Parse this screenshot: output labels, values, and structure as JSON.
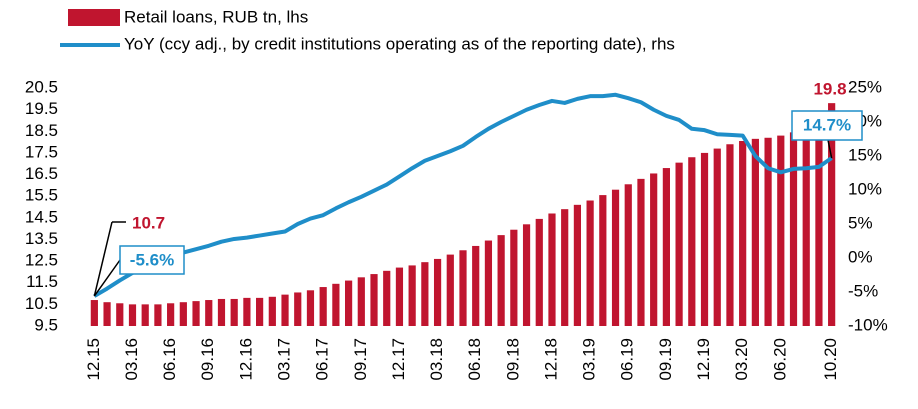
{
  "chart_data": {
    "type": "bar_line",
    "categories": [
      "12.15",
      null,
      null,
      "03.16",
      null,
      null,
      "06.16",
      null,
      null,
      "09.16",
      null,
      null,
      "12.16",
      null,
      null,
      "03.17",
      null,
      null,
      "06.17",
      null,
      null,
      "09.17",
      null,
      null,
      "12.17",
      null,
      null,
      "03.18",
      null,
      null,
      "06.18",
      null,
      null,
      "09.18",
      null,
      null,
      "12.18",
      null,
      null,
      "03.19",
      null,
      null,
      "06.19",
      null,
      null,
      "09.19",
      null,
      null,
      "12.19",
      null,
      null,
      "03.20",
      null,
      null,
      "06.20",
      null,
      null,
      null,
      "10.20"
    ],
    "series": [
      {
        "name": "Retail loans, RUB tn, lhs",
        "color": "#c0152f",
        "type": "bar",
        "values": [
          10.7,
          10.6,
          10.55,
          10.5,
          10.5,
          10.5,
          10.55,
          10.6,
          10.65,
          10.7,
          10.75,
          10.75,
          10.8,
          10.8,
          10.85,
          10.95,
          11.05,
          11.15,
          11.3,
          11.45,
          11.6,
          11.75,
          11.9,
          12.05,
          12.2,
          12.3,
          12.45,
          12.6,
          12.8,
          13.0,
          13.2,
          13.45,
          13.7,
          13.95,
          14.2,
          14.45,
          14.7,
          14.9,
          15.1,
          15.3,
          15.55,
          15.8,
          16.05,
          16.3,
          16.55,
          16.8,
          17.05,
          17.3,
          17.5,
          17.7,
          17.9,
          18.05,
          18.15,
          18.2,
          18.3,
          18.45,
          18.7,
          19.0,
          19.8
        ]
      },
      {
        "name": "YoY (ccy adj., by credit institutions operating as of the reporting date), rhs",
        "color": "#1f8ec9",
        "type": "line",
        "axis": "y2",
        "values": [
          -5.6,
          -4.5,
          -3.3,
          -2.2,
          -1.2,
          -0.3,
          0.3,
          0.8,
          1.3,
          1.8,
          2.4,
          2.8,
          3.0,
          3.3,
          3.6,
          3.9,
          5.0,
          5.8,
          6.3,
          7.3,
          8.2,
          9.0,
          9.9,
          10.8,
          12.0,
          13.2,
          14.3,
          15.0,
          15.7,
          16.5,
          17.8,
          19.0,
          20.0,
          20.9,
          21.8,
          22.5,
          23.1,
          22.8,
          23.4,
          23.8,
          23.8,
          24.0,
          23.5,
          22.9,
          21.8,
          20.9,
          20.3,
          19.0,
          18.8,
          18.2,
          18.1,
          18.0,
          15.0,
          13.2,
          12.6,
          13.1,
          13.2,
          13.4,
          14.7
        ],
        "value_labels": [
          "-5.6%",
          null,
          null,
          null,
          null,
          null,
          null,
          null,
          null,
          null,
          null,
          null,
          null,
          null,
          null,
          null,
          null,
          null,
          null,
          null,
          null,
          null,
          null,
          null,
          null,
          null,
          null,
          null,
          null,
          null,
          null,
          null,
          null,
          null,
          null,
          null,
          null,
          null,
          null,
          null,
          null,
          null,
          null,
          null,
          null,
          null,
          null,
          null,
          null,
          null,
          null,
          null,
          null,
          null,
          null,
          null,
          null,
          null,
          "14.7%"
        ]
      }
    ],
    "ylim": [
      9.5,
      20.5
    ],
    "yticks": [
      9.5,
      10.5,
      11.5,
      12.5,
      13.5,
      14.5,
      15.5,
      16.5,
      17.5,
      18.5,
      19.5,
      20.5
    ],
    "y2lim": [
      -10,
      25
    ],
    "y2ticks": [
      {
        "value": -10,
        "label": "-10%"
      },
      {
        "value": -5,
        "label": "-5%"
      },
      {
        "value": 0,
        "label": "0%"
      },
      {
        "value": 5,
        "label": "5%"
      },
      {
        "value": 10,
        "label": "10%"
      },
      {
        "value": 15,
        "label": "15%"
      },
      {
        "value": 20,
        "label": "20%"
      },
      {
        "value": 25,
        "label": "25%"
      }
    ],
    "legend": "top"
  }
}
